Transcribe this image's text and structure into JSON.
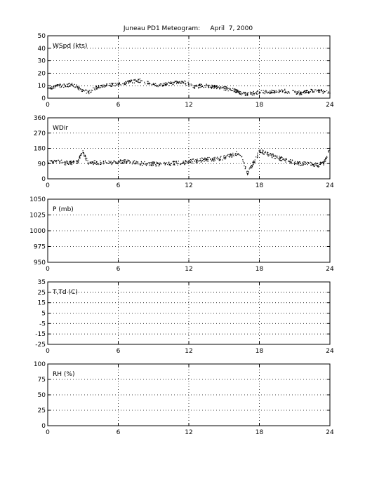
{
  "title": "Juneau PD1 Meteogram:     April  7, 2000",
  "chart_data": [
    {
      "type": "scatter",
      "ylabel": "WSpd (kts)",
      "x_ticks": [
        0,
        6,
        12,
        18,
        24
      ],
      "y_ticks": [
        0,
        10,
        20,
        30,
        40,
        50
      ],
      "xlim": [
        0,
        24
      ],
      "ylim": [
        0,
        50
      ],
      "grid": true,
      "series": [
        {
          "x": [
            0,
            0.5,
            1,
            1.5,
            2,
            2.5,
            3,
            3.5,
            4,
            4.5,
            5,
            5.5,
            6,
            6.5,
            7,
            7.5,
            8,
            8.5,
            9,
            9.5,
            10,
            10.5,
            11,
            11.5,
            12,
            12.5,
            13,
            13.5,
            14,
            14.5,
            15,
            15.5,
            16,
            16.5,
            17,
            17.5,
            18,
            18.5,
            19,
            19.5,
            20,
            20.5,
            21,
            21.5,
            22,
            22.5,
            23,
            23.5,
            24
          ],
          "y": [
            8,
            9,
            10,
            10,
            11,
            9,
            6,
            5,
            8,
            10,
            10,
            11,
            11,
            12,
            13,
            14,
            14,
            12,
            11,
            10,
            11,
            12,
            13,
            13,
            11,
            9,
            10,
            10,
            9,
            9,
            8,
            7,
            6,
            4,
            3,
            4,
            5,
            5,
            5,
            5,
            6,
            5,
            5,
            4,
            5,
            6,
            6,
            5,
            4
          ]
        }
      ]
    },
    {
      "type": "scatter",
      "ylabel": "WDir",
      "x_ticks": [
        0,
        6,
        12,
        18,
        24
      ],
      "y_ticks": [
        0,
        90,
        180,
        270,
        360
      ],
      "xlim": [
        0,
        24
      ],
      "ylim": [
        0,
        360
      ],
      "grid": true,
      "series": [
        {
          "x": [
            0,
            0.5,
            1,
            1.5,
            2,
            2.5,
            3,
            3.5,
            4,
            4.5,
            5,
            5.5,
            6,
            6.5,
            7,
            7.5,
            8,
            8.5,
            9,
            9.5,
            10,
            10.5,
            11,
            11.5,
            12,
            12.5,
            13,
            13.5,
            14,
            14.5,
            15,
            15.5,
            16,
            16.5,
            17,
            17.5,
            18,
            18.5,
            19,
            19.5,
            20,
            20.5,
            21,
            21.5,
            22,
            22.5,
            23,
            23.5,
            24
          ],
          "y": [
            105,
            100,
            100,
            95,
            95,
            100,
            155,
            90,
            95,
            95,
            95,
            95,
            100,
            100,
            100,
            95,
            92,
            90,
            88,
            85,
            88,
            90,
            92,
            95,
            100,
            105,
            110,
            115,
            115,
            120,
            125,
            135,
            150,
            130,
            30,
            95,
            160,
            155,
            140,
            125,
            115,
            105,
            95,
            90,
            90,
            85,
            80,
            95,
            180
          ]
        }
      ]
    },
    {
      "type": "scatter",
      "ylabel": "P (mb)",
      "x_ticks": [
        0,
        6,
        12,
        18,
        24
      ],
      "y_ticks": [
        950,
        975,
        1000,
        1025,
        1050
      ],
      "xlim": [
        0,
        24
      ],
      "ylim": [
        950,
        1050
      ],
      "grid": true,
      "series": []
    },
    {
      "type": "scatter",
      "ylabel": "T,Td (C)",
      "x_ticks": [
        0,
        6,
        12,
        18,
        24
      ],
      "y_ticks": [
        -25,
        -15,
        -5,
        5,
        15,
        25,
        35
      ],
      "xlim": [
        0,
        24
      ],
      "ylim": [
        -25,
        35
      ],
      "grid": true,
      "series": []
    },
    {
      "type": "scatter",
      "ylabel": "RH (%)",
      "x_ticks": [
        0,
        6,
        12,
        18,
        24
      ],
      "y_ticks": [
        0,
        25,
        50,
        75,
        100
      ],
      "xlim": [
        0,
        24
      ],
      "ylim": [
        0,
        100
      ],
      "grid": true,
      "series": []
    }
  ]
}
